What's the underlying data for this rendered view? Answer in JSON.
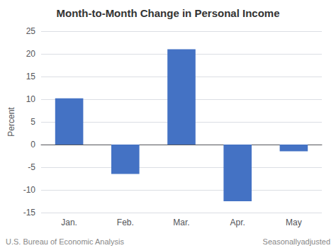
{
  "chart_data": {
    "type": "bar",
    "title": "Month-to-Month Change in Personal Income",
    "ylabel": "Percent",
    "categories": [
      "Jan.",
      "Feb.",
      "Mar.",
      "Apr.",
      "May"
    ],
    "values": [
      10.2,
      -6.5,
      21.0,
      -12.5,
      -1.5
    ],
    "color": "#4472c4",
    "ylim": [
      -15,
      25
    ],
    "yticks": [
      -15,
      -10,
      -5,
      0,
      5,
      10,
      15,
      20,
      25
    ],
    "grid": true,
    "annotations": [
      "U.S. Bureau of Economic Analysis",
      "Seasonallyadjusted"
    ]
  }
}
